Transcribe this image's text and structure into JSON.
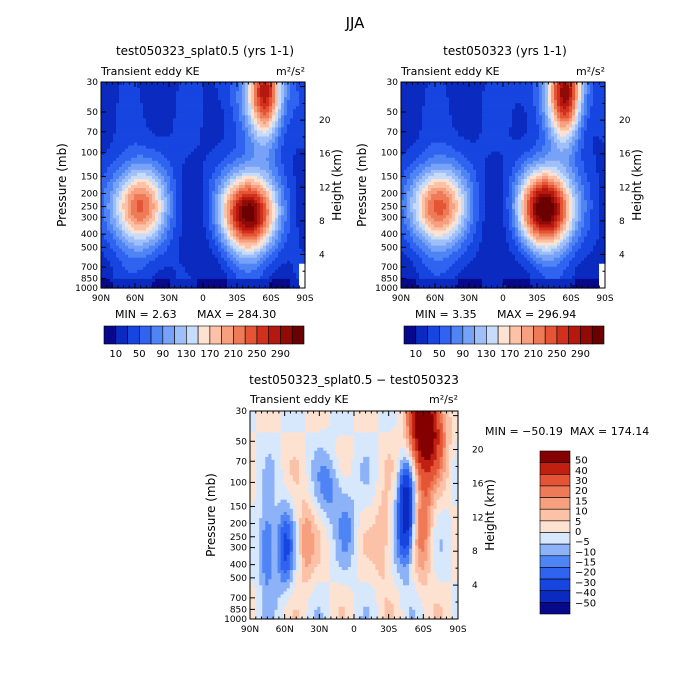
{
  "suptitle": "JJA",
  "colors": {
    "blue_red_17": [
      "#08088a",
      "#0a2ac0",
      "#1745e0",
      "#2f63f0",
      "#4f84f5",
      "#77a2f7",
      "#9fbff9",
      "#c7dcfb",
      "#fde2d2",
      "#fbc2a8",
      "#f6a07f",
      "#ef7a58",
      "#e55434",
      "#d1301c",
      "#b51810",
      "#900a06",
      "#6a0000"
    ],
    "diff_14": [
      "#08088a",
      "#0a2ac0",
      "#1745e0",
      "#2f63f0",
      "#4f84f5",
      "#8db2f7",
      "#d8e8fc",
      "#fde2d2",
      "#fbc2a8",
      "#f6a07f",
      "#ef7a58",
      "#e55434",
      "#c02010",
      "#850000"
    ]
  },
  "chart_data": [
    {
      "type": "heatmap",
      "title": "test050323_splat0.5 (yrs 1-1)",
      "subtitle_left": "Transient eddy KE",
      "subtitle_right": "m²/s²",
      "ylabel": "Pressure (mb)",
      "ylabel_right": "Height (km)",
      "xticks": [
        "90N",
        "60N",
        "30N",
        "0",
        "30S",
        "60S",
        "90S"
      ],
      "yticks": [
        "30",
        "50",
        "70",
        "100",
        "150",
        "200",
        "250",
        "300",
        "400",
        "500",
        "700",
        "850",
        "1000"
      ],
      "yticks_right": [
        "20",
        "16",
        "12",
        "8",
        "4"
      ],
      "y_scale": "log-pressure",
      "min_label": "MIN = 2.63",
      "max_label": "MAX = 284.30",
      "min": 2.63,
      "max": 284.3,
      "features": [
        {
          "lat": 58,
          "p": 250,
          "peak": 190
        },
        {
          "lat": -40,
          "p": 280,
          "peak": 284
        },
        {
          "lat": -55,
          "p": 35,
          "peak": 220
        }
      ]
    },
    {
      "type": "heatmap",
      "title": "test050323 (yrs 1-1)",
      "subtitle_left": "Transient eddy KE",
      "subtitle_right": "m²/s²",
      "ylabel": "Pressure (mb)",
      "ylabel_right": "Height (km)",
      "xticks": [
        "90N",
        "60N",
        "30N",
        "0",
        "30S",
        "60S",
        "90S"
      ],
      "yticks": [
        "30",
        "50",
        "70",
        "100",
        "150",
        "200",
        "250",
        "300",
        "400",
        "500",
        "700",
        "850",
        "1000"
      ],
      "yticks_right": [
        "20",
        "16",
        "12",
        "8",
        "4"
      ],
      "y_scale": "log-pressure",
      "min_label": "MIN = 3.35",
      "max_label": "MAX = 296.94",
      "min": 3.35,
      "max": 296.94,
      "features": [
        {
          "lat": 58,
          "p": 250,
          "peak": 200
        },
        {
          "lat": -38,
          "p": 260,
          "peak": 297
        },
        {
          "lat": -55,
          "p": 35,
          "peak": 235
        }
      ]
    },
    {
      "type": "heatmap",
      "title": "test050323_splat0.5 − test050323",
      "subtitle_left": "Transient eddy KE",
      "subtitle_right": "m²/s²",
      "ylabel": "Pressure (mb)",
      "ylabel_right": "Height (km)",
      "xticks": [
        "90N",
        "60N",
        "30N",
        "0",
        "30S",
        "60S",
        "90S"
      ],
      "yticks": [
        "30",
        "50",
        "70",
        "100",
        "150",
        "200",
        "250",
        "300",
        "400",
        "500",
        "700",
        "850",
        "1000"
      ],
      "yticks_right": [
        "20",
        "16",
        "12",
        "8",
        "4"
      ],
      "y_scale": "log-pressure",
      "min_label": "MIN = −50.19",
      "max_label": "MAX = 174.14",
      "min": -50.19,
      "max": 174.14
    }
  ],
  "colorbars": {
    "top_left": [
      "10",
      "50",
      "90",
      "130",
      "170",
      "210",
      "250",
      "290"
    ],
    "top_right": [
      "10",
      "50",
      "90",
      "130",
      "170",
      "210",
      "250",
      "290"
    ],
    "diff": [
      "50",
      "40",
      "30",
      "20",
      "15",
      "10",
      "5",
      "0",
      "−5",
      "−10",
      "−15",
      "−20",
      "−30",
      "−40",
      "−50"
    ]
  }
}
